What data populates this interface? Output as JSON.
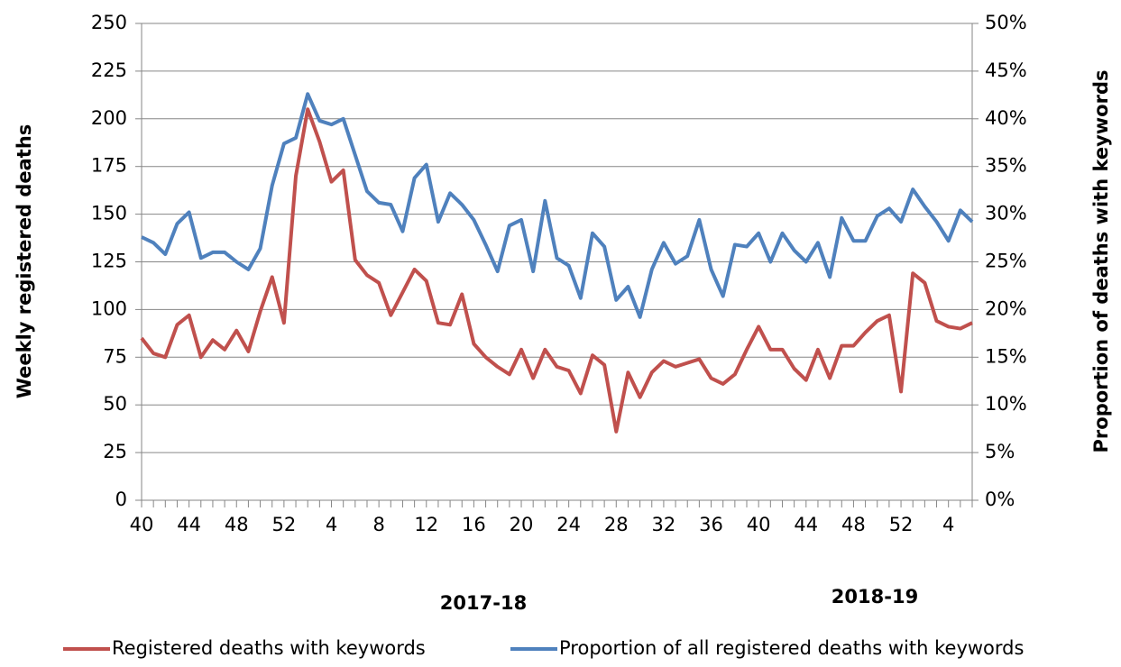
{
  "chart_data": {
    "type": "line",
    "ylabel": "Weekly registered deaths",
    "y2label": "Proportion of deaths with keywords",
    "categories": [
      "40",
      null,
      null,
      null,
      "44",
      null,
      null,
      null,
      "48",
      null,
      null,
      null,
      "52",
      null,
      null,
      null,
      "4",
      null,
      null,
      null,
      "8",
      null,
      null,
      null,
      "12",
      null,
      null,
      null,
      "16",
      null,
      null,
      null,
      "20",
      null,
      null,
      null,
      "24",
      null,
      null,
      null,
      "28",
      null,
      null,
      null,
      "32",
      null,
      null,
      null,
      "36",
      null,
      null,
      null,
      "40",
      null,
      null,
      null,
      "44",
      null,
      null,
      null,
      "48",
      null,
      null,
      null,
      "52",
      null,
      null,
      null,
      "4",
      null,
      null
    ],
    "x_groups": [
      "2017-18",
      "2018-19"
    ],
    "series": [
      {
        "name": "Registered deaths with keywords",
        "color": "#c0504d",
        "values": [
          85,
          77,
          75,
          92,
          97,
          75,
          84,
          79,
          89,
          78,
          99,
          117,
          93,
          170,
          205,
          188,
          167,
          173,
          126,
          118,
          114,
          97,
          109,
          121,
          115,
          93,
          92,
          108,
          82,
          75,
          70,
          66,
          79,
          64,
          79,
          70,
          68,
          56,
          76,
          71,
          36,
          67,
          54,
          67,
          73,
          70,
          72,
          74,
          64,
          61,
          66,
          79,
          91,
          79,
          79,
          69,
          63,
          79,
          64,
          81,
          81,
          88,
          94,
          97,
          57,
          119,
          114,
          94,
          91,
          90,
          93
        ]
      },
      {
        "name": "Proportion of all registered deaths with keywords",
        "color": "#4f81bd",
        "axis": "y2",
        "values": [
          27.6,
          27,
          25.8,
          29,
          30.2,
          25.4,
          26,
          26,
          25,
          24.2,
          26.4,
          33,
          37.4,
          38,
          42.6,
          39.8,
          39.4,
          40,
          36.2,
          32.4,
          31.2,
          31,
          28.2,
          33.8,
          35.2,
          29.2,
          32.2,
          31,
          29.4,
          26.8,
          24,
          28.8,
          29.4,
          24,
          31.4,
          25.4,
          24.6,
          21.2,
          28,
          26.6,
          21,
          22.4,
          19.2,
          24.2,
          27,
          24.8,
          25.6,
          29.4,
          24.2,
          21.4,
          26.8,
          26.6,
          28,
          25,
          28,
          26.2,
          25,
          27,
          23.4,
          29.6,
          27.2,
          27.2,
          29.8,
          30.6,
          29.2,
          32.6,
          30.8,
          29.2,
          27.2,
          30.4,
          29.2
        ]
      }
    ],
    "ylim": [
      0,
      250
    ],
    "yticks": [
      0,
      25,
      50,
      75,
      100,
      125,
      150,
      175,
      200,
      225,
      250
    ],
    "y2lim": [
      0,
      50
    ],
    "y2ticks": [
      {
        "value": 0,
        "label": "0%"
      },
      {
        "value": 5,
        "label": "5%"
      },
      {
        "value": 10,
        "label": "10%"
      },
      {
        "value": 15,
        "label": "15%"
      },
      {
        "value": 20,
        "label": "20%"
      },
      {
        "value": 25,
        "label": "25%"
      },
      {
        "value": 30,
        "label": "30%"
      },
      {
        "value": 35,
        "label": "35%"
      },
      {
        "value": 40,
        "label": "40%"
      },
      {
        "value": 45,
        "label": "45%"
      },
      {
        "value": 50,
        "label": "50%"
      }
    ],
    "grid": true
  }
}
